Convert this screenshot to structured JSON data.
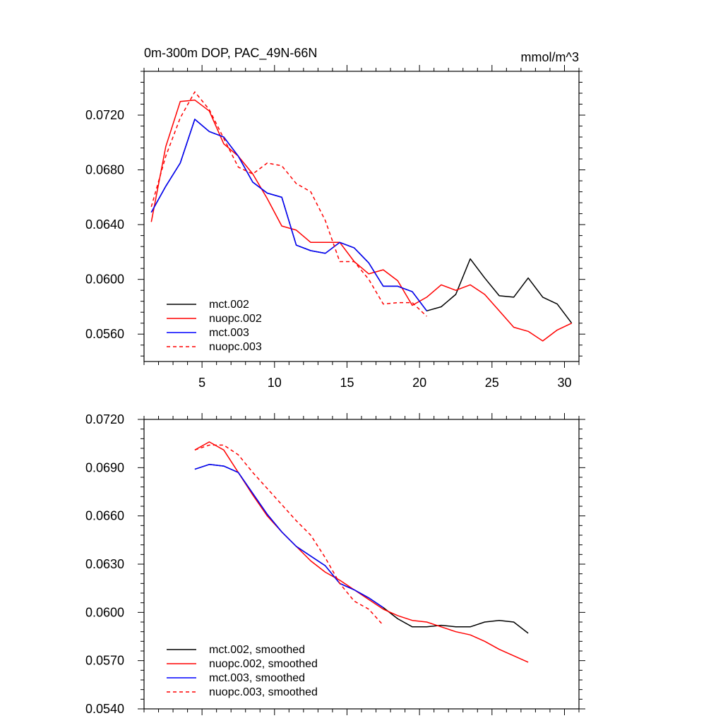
{
  "chart_data": [
    {
      "type": "line",
      "title": "0m-300m DOP, PAC_49N-66N",
      "units": "mmol/m^3",
      "xlim": [
        1,
        31
      ],
      "ylim": [
        0.054,
        0.0752
      ],
      "xticks": [
        5,
        10,
        15,
        20,
        25,
        30
      ],
      "x_tick_labels": [
        "5",
        "10",
        "15",
        "20",
        "25",
        "30"
      ],
      "yticks": [
        0.056,
        0.06,
        0.064,
        0.068,
        0.072
      ],
      "y_tick_labels": [
        "0.0560",
        "0.0600",
        "0.0640",
        "0.0680",
        "0.0720"
      ],
      "grid": false,
      "legend_position": "bottom-left",
      "series": [
        {
          "name": "mct.002",
          "color": "#000000",
          "dash": "solid",
          "x": [
            1.5,
            2.5,
            3.5,
            4.5,
            5.5,
            6.5,
            7.5,
            8.5,
            9.5,
            10.5,
            11.5,
            12.5,
            13.5,
            14.5,
            15.5,
            16.5,
            17.5,
            18.5,
            19.5,
            20.5,
            21.5,
            22.5,
            23.5,
            24.5,
            25.5,
            26.5,
            27.5,
            28.5,
            29.5,
            30.5
          ],
          "y": [
            0.0649,
            0.0668,
            0.0685,
            0.0717,
            0.0708,
            0.0704,
            0.069,
            0.0671,
            0.0663,
            0.066,
            0.0625,
            0.0621,
            0.0619,
            0.0627,
            0.0623,
            0.0612,
            0.0595,
            0.0595,
            0.0591,
            0.0577,
            0.058,
            0.0589,
            0.0615,
            0.0601,
            0.0588,
            0.0587,
            0.0601,
            0.0587,
            0.0582,
            0.0568
          ]
        },
        {
          "name": "nuopc.002",
          "color": "#ff0000",
          "dash": "solid",
          "x": [
            1.5,
            2.5,
            3.5,
            4.5,
            5.5,
            6.5,
            7.5,
            8.5,
            9.5,
            10.5,
            11.5,
            12.5,
            13.5,
            14.5,
            15.5,
            16.5,
            17.5,
            18.5,
            19.5,
            20.5,
            21.5,
            22.5,
            23.5,
            24.5,
            25.5,
            26.5,
            27.5,
            28.5,
            29.5,
            30.5
          ],
          "y": [
            0.0642,
            0.0697,
            0.073,
            0.0731,
            0.0723,
            0.0699,
            0.069,
            0.0677,
            0.0659,
            0.0639,
            0.0636,
            0.0627,
            0.0627,
            0.0627,
            0.0613,
            0.0604,
            0.0607,
            0.0599,
            0.0581,
            0.0587,
            0.0596,
            0.0592,
            0.0596,
            0.0589,
            0.0577,
            0.0565,
            0.0562,
            0.0555,
            0.0563,
            0.0568
          ]
        },
        {
          "name": "mct.003",
          "color": "#0000ff",
          "dash": "solid",
          "x": [
            1.5,
            2.5,
            3.5,
            4.5,
            5.5,
            6.5,
            7.5,
            8.5,
            9.5,
            10.5,
            11.5,
            12.5,
            13.5,
            14.5,
            15.5,
            16.5,
            17.5,
            18.5,
            19.5,
            20.5
          ],
          "y": [
            0.0649,
            0.0668,
            0.0685,
            0.0717,
            0.0708,
            0.0704,
            0.069,
            0.0671,
            0.0663,
            0.066,
            0.0625,
            0.0621,
            0.0619,
            0.0627,
            0.0623,
            0.0612,
            0.0595,
            0.0595,
            0.0591,
            0.0577
          ]
        },
        {
          "name": "nuopc.003",
          "color": "#ff0000",
          "dash": "dashed",
          "x": [
            1.5,
            2.5,
            3.5,
            4.5,
            5.5,
            6.5,
            7.5,
            8.5,
            9.5,
            10.5,
            11.5,
            12.5,
            13.5,
            14.5,
            15.5,
            16.5,
            17.5,
            18.5,
            19.5,
            20.5
          ],
          "y": [
            0.0653,
            0.069,
            0.0718,
            0.0737,
            0.0724,
            0.0703,
            0.0682,
            0.0677,
            0.0685,
            0.0683,
            0.067,
            0.0664,
            0.0643,
            0.0613,
            0.0613,
            0.06,
            0.0582,
            0.0583,
            0.0583,
            0.0573
          ]
        }
      ]
    },
    {
      "type": "line",
      "title": "",
      "units": "",
      "xlim": [
        1,
        31
      ],
      "ylim": [
        0.054,
        0.072
      ],
      "xticks": [
        5,
        10,
        15,
        20,
        25,
        30
      ],
      "x_tick_labels": [],
      "yticks": [
        0.054,
        0.057,
        0.06,
        0.063,
        0.066,
        0.069,
        0.072
      ],
      "y_tick_labels": [
        "0.0540",
        "0.0570",
        "0.0600",
        "0.0630",
        "0.0660",
        "0.0690",
        "0.0720"
      ],
      "grid": false,
      "legend_position": "bottom-left",
      "series": [
        {
          "name": "mct.002, smoothed",
          "color": "#000000",
          "dash": "solid",
          "x": [
            4.5,
            5.5,
            6.5,
            7.5,
            8.5,
            9.5,
            10.5,
            11.5,
            12.5,
            13.5,
            14.5,
            15.5,
            16.5,
            17.5,
            18.5,
            19.5,
            20.5,
            21.5,
            22.5,
            23.5,
            24.5,
            25.5,
            26.5,
            27.5
          ],
          "y": [
            0.0689,
            0.0692,
            0.0691,
            0.0687,
            0.0674,
            0.0661,
            0.065,
            0.0641,
            0.0635,
            0.0629,
            0.0618,
            0.0614,
            0.0609,
            0.0603,
            0.0596,
            0.0591,
            0.0591,
            0.0592,
            0.0591,
            0.0591,
            0.0594,
            0.0595,
            0.0594,
            0.0587
          ]
        },
        {
          "name": "nuopc.002, smoothed",
          "color": "#ff0000",
          "dash": "solid",
          "x": [
            4.5,
            5.5,
            6.5,
            7.5,
            8.5,
            9.5,
            10.5,
            11.5,
            12.5,
            13.5,
            14.5,
            15.5,
            16.5,
            17.5,
            18.5,
            19.5,
            20.5,
            21.5,
            22.5,
            23.5,
            24.5,
            25.5,
            26.5,
            27.5
          ],
          "y": [
            0.0701,
            0.0706,
            0.0701,
            0.0687,
            0.0673,
            0.066,
            0.065,
            0.0641,
            0.0632,
            0.0625,
            0.062,
            0.0614,
            0.0608,
            0.0602,
            0.0598,
            0.0595,
            0.0594,
            0.0591,
            0.0588,
            0.0586,
            0.0582,
            0.0577,
            0.0573,
            0.0569
          ]
        },
        {
          "name": "mct.003, smoothed",
          "color": "#0000ff",
          "dash": "solid",
          "x": [
            4.5,
            5.5,
            6.5,
            7.5,
            8.5,
            9.5,
            10.5,
            11.5,
            12.5,
            13.5,
            14.5,
            15.5,
            16.5,
            17.5
          ],
          "y": [
            0.0689,
            0.0692,
            0.0691,
            0.0687,
            0.0674,
            0.0661,
            0.065,
            0.0641,
            0.0635,
            0.0629,
            0.0618,
            0.0614,
            0.0609,
            0.0603
          ]
        },
        {
          "name": "nuopc.003, smoothed",
          "color": "#ff0000",
          "dash": "dashed",
          "x": [
            4.5,
            5.5,
            6.5,
            7.5,
            8.5,
            9.5,
            10.5,
            11.5,
            12.5,
            13.5,
            14.5,
            15.5,
            16.5,
            17.5
          ],
          "y": [
            0.0701,
            0.0704,
            0.0704,
            0.0698,
            0.0687,
            0.0677,
            0.0667,
            0.0657,
            0.0648,
            0.0634,
            0.0618,
            0.0607,
            0.0602,
            0.0592
          ]
        }
      ]
    }
  ]
}
